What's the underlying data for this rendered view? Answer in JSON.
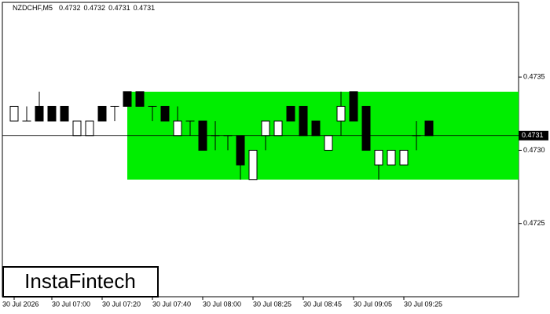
{
  "chart_data": {
    "type": "candlestick",
    "symbol": "NZDCHF,M5",
    "header_ohlc": [
      0.4732,
      0.4732,
      0.4731,
      0.4731
    ],
    "brand": "InstaFintech",
    "categories": [
      "30 Jul 2026",
      null,
      null,
      "30 Jul 07:00",
      null,
      null,
      null,
      "30 Jul 07:20",
      null,
      null,
      null,
      "30 Jul 07:40",
      null,
      null,
      null,
      "30 Jul 08:00",
      null,
      null,
      null,
      "30 Jul 08:25",
      null,
      null,
      null,
      "30 Jul 08:45",
      null,
      null,
      null,
      "30 Jul 09:05",
      null,
      null,
      null,
      "30 Jul 09:25",
      null,
      null
    ],
    "open": [
      0.4732,
      0.4732,
      0.4733,
      0.4733,
      0.4733,
      0.4731,
      0.4731,
      0.4733,
      0.4733,
      0.4734,
      0.4734,
      0.4733,
      0.4733,
      0.4731,
      0.4732,
      0.4732,
      0.4731,
      0.4731,
      0.4731,
      0.4728,
      0.4731,
      0.4731,
      0.4733,
      0.4733,
      0.4732,
      0.473,
      0.4732,
      0.4734,
      0.4733,
      0.4729,
      0.4729,
      0.4729,
      0.4731,
      0.4732
    ],
    "high": [
      0.4733,
      0.4733,
      0.4734,
      0.4733,
      0.4733,
      0.4732,
      0.4732,
      0.4733,
      0.4733,
      0.4734,
      0.4734,
      0.4733,
      0.4733,
      0.4733,
      0.4732,
      0.4732,
      0.4732,
      0.4731,
      0.4731,
      0.473,
      0.4732,
      0.4732,
      0.4733,
      0.4733,
      0.4732,
      0.4731,
      0.4734,
      0.4734,
      0.4733,
      0.473,
      0.473,
      0.473,
      0.4732,
      0.4732
    ],
    "low": [
      0.4732,
      0.4732,
      0.4732,
      0.4732,
      0.4732,
      0.4731,
      0.4731,
      0.4732,
      0.4732,
      0.4733,
      0.4733,
      0.4732,
      0.4732,
      0.4731,
      0.4731,
      0.473,
      0.473,
      0.473,
      0.4728,
      0.4728,
      0.473,
      0.4731,
      0.4732,
      0.4731,
      0.4731,
      0.473,
      0.4731,
      0.4732,
      0.473,
      0.4728,
      0.4729,
      0.4729,
      0.473,
      0.4731
    ],
    "close": [
      0.4733,
      0.4732,
      0.4732,
      0.4732,
      0.4732,
      0.4732,
      0.4732,
      0.4732,
      0.4733,
      0.4733,
      0.4733,
      0.4733,
      0.4732,
      0.4732,
      0.4732,
      0.473,
      0.4731,
      0.4731,
      0.4729,
      0.473,
      0.4732,
      0.4732,
      0.4732,
      0.4731,
      0.4731,
      0.4731,
      0.4733,
      0.4732,
      0.473,
      0.473,
      0.473,
      0.473,
      0.4731,
      0.4731
    ],
    "zone": [
      0.4728,
      0.4734
    ],
    "zone_color": "#00ee00",
    "last_price": 0.4731,
    "ylim": [
      0.472,
      0.47401
    ],
    "yticks": [
      0.4725,
      {
        "value": 0.473,
        "label": "0.4730"
      },
      0.4735
    ]
  }
}
